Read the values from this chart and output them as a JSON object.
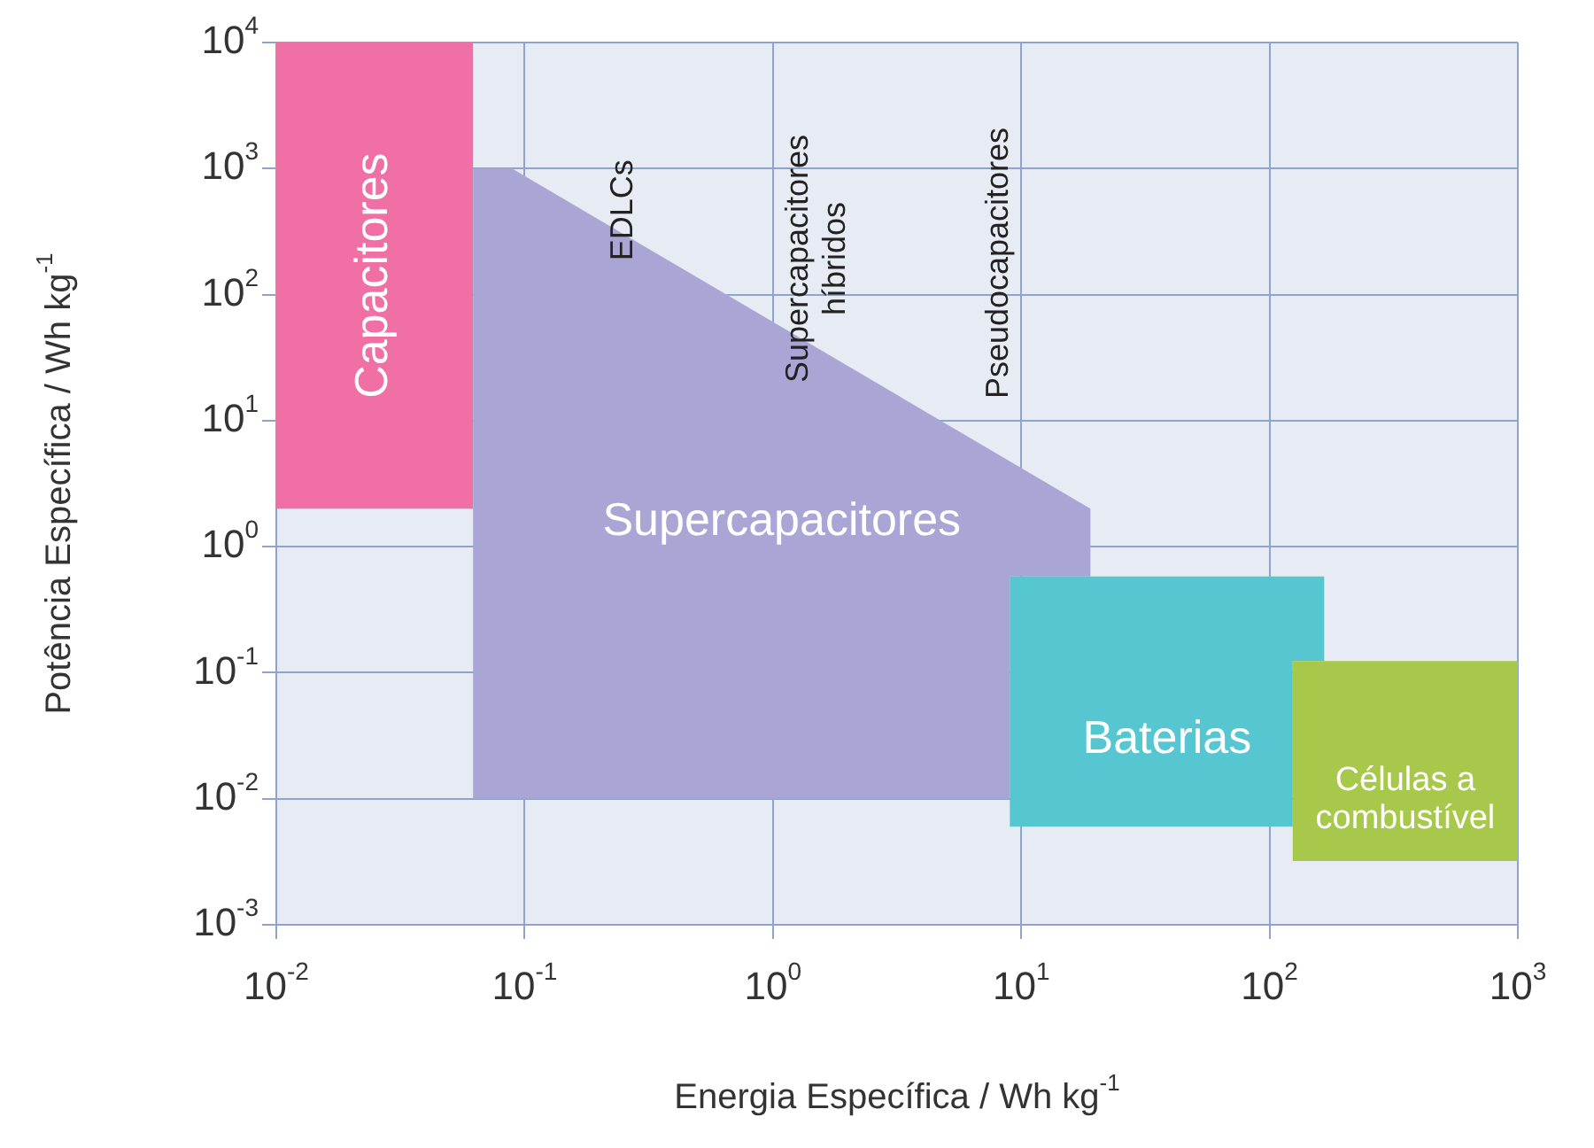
{
  "chart_data": {
    "type": "area",
    "xlabel": "Energia Específica / Wh kg$^{-1}$",
    "ylabel": "Potência Específica / Wh kg$^{-1}$",
    "log": "xy",
    "grid": true,
    "legend": false,
    "xlim": [
      0.01,
      1000
    ],
    "ylim": [
      0.001,
      10000
    ],
    "xticks": [
      {
        "value": 0.01,
        "label": "10$^{-2}$"
      },
      {
        "value": 0.1,
        "label": "10$^{-1}$"
      },
      {
        "value": 1,
        "label": "10$^{0}$"
      },
      {
        "value": 10,
        "label": "10$^{1}$"
      },
      {
        "value": 100,
        "label": "10$^{2}$"
      },
      {
        "value": 1000,
        "label": "10$^{3}$"
      }
    ],
    "yticks": [
      {
        "value": 0.001,
        "label": "10$^{-3}$"
      },
      {
        "value": 0.01,
        "label": "10$^{-2}$"
      },
      {
        "value": 0.1,
        "label": "10$^{-1}$"
      },
      {
        "value": 1,
        "label": "10$^{0}$"
      },
      {
        "value": 10,
        "label": "10$^{1}$"
      },
      {
        "value": 100,
        "label": "10$^{2}$"
      },
      {
        "value": 1000,
        "label": "10$^{3}$"
      },
      {
        "value": 10000,
        "label": "10$^{4}$"
      }
    ],
    "series": [
      {
        "name": "Capacitores",
        "color": "#f070a6",
        "x": [
          0.01,
          0.062,
          0.062,
          0.01
        ],
        "values": [
          10000,
          10000,
          2,
          2
        ]
      },
      {
        "name": "Supercapacitores",
        "color": "#a9a6d6",
        "x": [
          0.062,
          0.089,
          19,
          19,
          9,
          9,
          0.062
        ],
        "values": [
          1000,
          1000,
          2,
          0.58,
          0.58,
          0.01,
          0.01
        ]
      },
      {
        "name": "Baterias",
        "color": "#56c6d0",
        "x": [
          9,
          166,
          166,
          124,
          124,
          9
        ],
        "values": [
          0.58,
          0.58,
          0.124,
          0.124,
          0.006,
          0.006
        ]
      },
      {
        "name": "Células a\ncombustível",
        "color": "#a8c84c",
        "x": [
          124,
          1000,
          1000,
          124
        ],
        "values": [
          0.124,
          0.124,
          0.0032,
          0.0032
        ]
      }
    ],
    "annotations": [
      "EDLCs",
      "Supercapacitores\nhíbridos",
      "Pseudocapacitores"
    ]
  }
}
